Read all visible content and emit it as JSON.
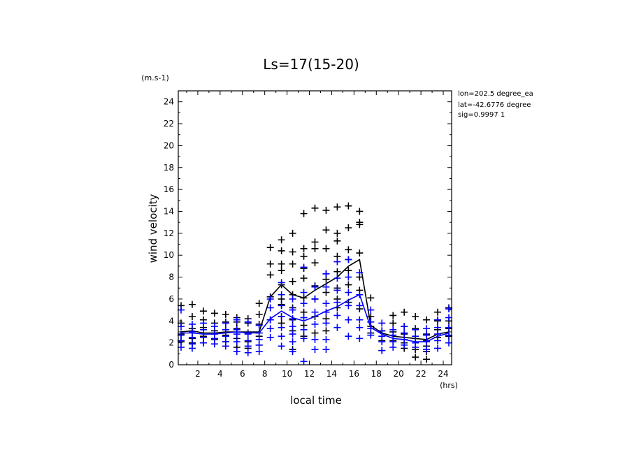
{
  "chart_data": {
    "type": "scatter",
    "title": "Ls=17(15-20)",
    "xlabel": "local time",
    "ylabel": "wind velocity",
    "x_unit": "(hrs)",
    "y_unit": "(m.s-1)",
    "xlim": [
      0.25,
      24.75
    ],
    "ylim": [
      0,
      25
    ],
    "xticks": [
      2,
      4,
      6,
      8,
      10,
      12,
      14,
      16,
      18,
      20,
      22,
      24
    ],
    "yticks": [
      0,
      2,
      4,
      6,
      8,
      10,
      12,
      14,
      16,
      18,
      20,
      22,
      24
    ],
    "info": [
      "lon=202.5 degree_ea",
      "lat=-42.6776 degree",
      "sig=0.9997 1"
    ],
    "grid": false,
    "series": [
      {
        "color": "#000000",
        "marker": "+",
        "x": [
          0.5,
          1.5,
          2.5,
          3.5,
          4.5,
          5.5,
          6.5,
          7.5,
          8.5,
          9.5,
          10.5,
          11.5,
          12.5,
          13.5,
          14.5,
          15.5,
          16.5,
          17.5,
          18.5,
          19.5,
          20.5,
          21.5,
          22.5,
          23.5,
          24.5
        ],
        "mean": [
          3.0,
          3.1,
          2.9,
          2.9,
          3.0,
          3.0,
          3.0,
          3.0,
          6.2,
          7.3,
          6.4,
          6.1,
          6.8,
          7.4,
          8.0,
          9.0,
          9.6,
          3.6,
          2.9,
          2.6,
          2.5,
          2.4,
          2.3,
          2.8,
          3.0
        ],
        "points": [
          [
            5.4,
            3.8,
            2.8,
            2.1
          ],
          [
            5.5,
            4.4,
            3.3,
            2.4,
            2.0
          ],
          [
            4.9,
            4.1,
            3.4,
            2.6,
            2.0
          ],
          [
            4.7,
            3.8,
            3.1,
            2.3
          ],
          [
            4.6,
            3.9,
            3.2,
            2.7,
            2.1
          ],
          [
            4.3,
            3.9,
            3.3,
            2.4,
            1.6
          ],
          [
            4.2,
            3.8,
            2.9,
            2.1,
            1.5
          ],
          [
            5.6,
            4.6,
            3.7,
            2.6,
            1.8
          ],
          [
            10.7,
            9.2,
            8.2,
            6.2,
            4.1
          ],
          [
            11.4,
            10.4,
            9.2,
            8.6,
            7.3,
            6.0,
            5.5,
            4.4,
            3.8
          ],
          [
            12.0,
            10.3,
            9.2,
            7.6,
            6.4,
            5.2,
            4.1,
            3.1,
            1.4
          ],
          [
            13.8,
            10.6,
            9.9,
            8.8,
            7.9,
            6.1,
            4.8,
            3.6,
            2.6
          ],
          [
            14.3,
            11.2,
            10.6,
            9.3,
            7.2,
            6.0,
            4.4,
            2.9
          ],
          [
            14.1,
            12.3,
            10.6,
            8.3,
            7.8,
            6.6,
            4.2,
            3.1
          ],
          [
            14.4,
            12.0,
            11.3,
            9.9,
            8.5,
            7.0,
            6.0,
            5.2
          ],
          [
            14.5,
            12.5,
            10.5,
            9.6,
            8.6,
            7.3,
            5.7
          ],
          [
            14.0,
            13.0,
            12.8,
            10.2,
            8.0,
            6.8,
            5.1
          ],
          [
            6.1,
            4.4,
            3.5,
            2.9
          ],
          [
            3.1,
            2.2,
            1.3
          ],
          [
            4.5,
            3.8,
            3.0,
            2.2
          ],
          [
            4.8,
            3.5,
            2.8,
            2.0,
            1.5
          ],
          [
            4.4,
            3.3,
            2.4,
            1.4,
            0.7
          ],
          [
            4.1,
            2.8,
            2.2,
            1.7,
            1.2,
            0.5
          ],
          [
            4.8,
            4.0,
            3.2,
            2.5
          ],
          [
            5.2,
            4.0,
            3.3,
            2.6
          ]
        ]
      },
      {
        "color": "#0000ff",
        "marker": "+",
        "x": [
          0.5,
          1.5,
          2.5,
          3.5,
          4.5,
          5.5,
          6.5,
          7.5,
          8.5,
          9.5,
          10.5,
          11.5,
          12.5,
          13.5,
          14.5,
          15.5,
          16.5,
          17.5,
          18.5,
          19.5,
          20.5,
          21.5,
          22.5,
          23.5,
          24.5
        ],
        "mean": [
          2.9,
          2.9,
          2.8,
          2.8,
          2.9,
          3.0,
          2.9,
          2.9,
          4.2,
          4.9,
          4.3,
          4.0,
          4.4,
          4.9,
          5.3,
          5.9,
          6.4,
          3.4,
          2.8,
          2.4,
          2.3,
          2.1,
          2.1,
          2.6,
          2.9
        ],
        "points": [
          [
            5.0,
            3.5,
            2.7,
            2.2,
            1.6
          ],
          [
            3.7,
            3.0,
            2.5,
            1.9,
            1.5
          ],
          [
            3.8,
            3.2,
            2.5,
            2.0
          ],
          [
            3.5,
            2.8,
            2.4,
            1.9
          ],
          [
            3.8,
            3.2,
            2.6,
            2.1,
            1.7
          ],
          [
            4.1,
            3.2,
            2.8,
            2.1,
            1.2
          ],
          [
            3.9,
            2.8,
            2.2,
            1.7,
            1.1
          ],
          [
            3.6,
            2.9,
            2.3,
            1.8,
            1.2
          ],
          [
            6.0,
            5.2,
            4.1,
            3.3,
            2.5
          ],
          [
            7.5,
            6.4,
            5.4,
            4.4,
            3.4,
            2.6,
            1.7
          ],
          [
            6.0,
            5.0,
            4.2,
            3.5,
            2.8,
            2.1,
            1.2
          ],
          [
            8.9,
            6.6,
            5.6,
            4.3,
            3.2,
            2.4,
            0.3
          ],
          [
            7.1,
            6.0,
            4.8,
            3.7,
            2.3,
            1.4
          ],
          [
            8.3,
            7.1,
            5.6,
            4.8,
            3.8,
            2.3,
            1.4
          ],
          [
            9.4,
            7.9,
            6.8,
            5.7,
            4.5,
            3.4
          ],
          [
            9.6,
            8.0,
            6.6,
            5.4,
            4.1,
            2.6
          ],
          [
            8.4,
            6.4,
            5.4,
            4.1,
            3.4,
            2.4
          ],
          [
            5.0,
            3.9,
            3.3,
            2.7
          ],
          [
            3.8,
            3.1,
            2.6,
            2.1,
            1.3
          ],
          [
            3.2,
            2.7,
            2.1,
            1.6
          ],
          [
            3.5,
            2.9,
            2.3,
            1.8
          ],
          [
            3.2,
            2.6,
            2.0,
            1.6
          ],
          [
            3.3,
            2.7,
            2.1,
            1.4
          ],
          [
            4.1,
            3.4,
            2.8,
            2.2,
            1.5
          ],
          [
            5.1,
            4.3,
            3.4,
            2.7,
            2.0
          ]
        ]
      }
    ]
  }
}
